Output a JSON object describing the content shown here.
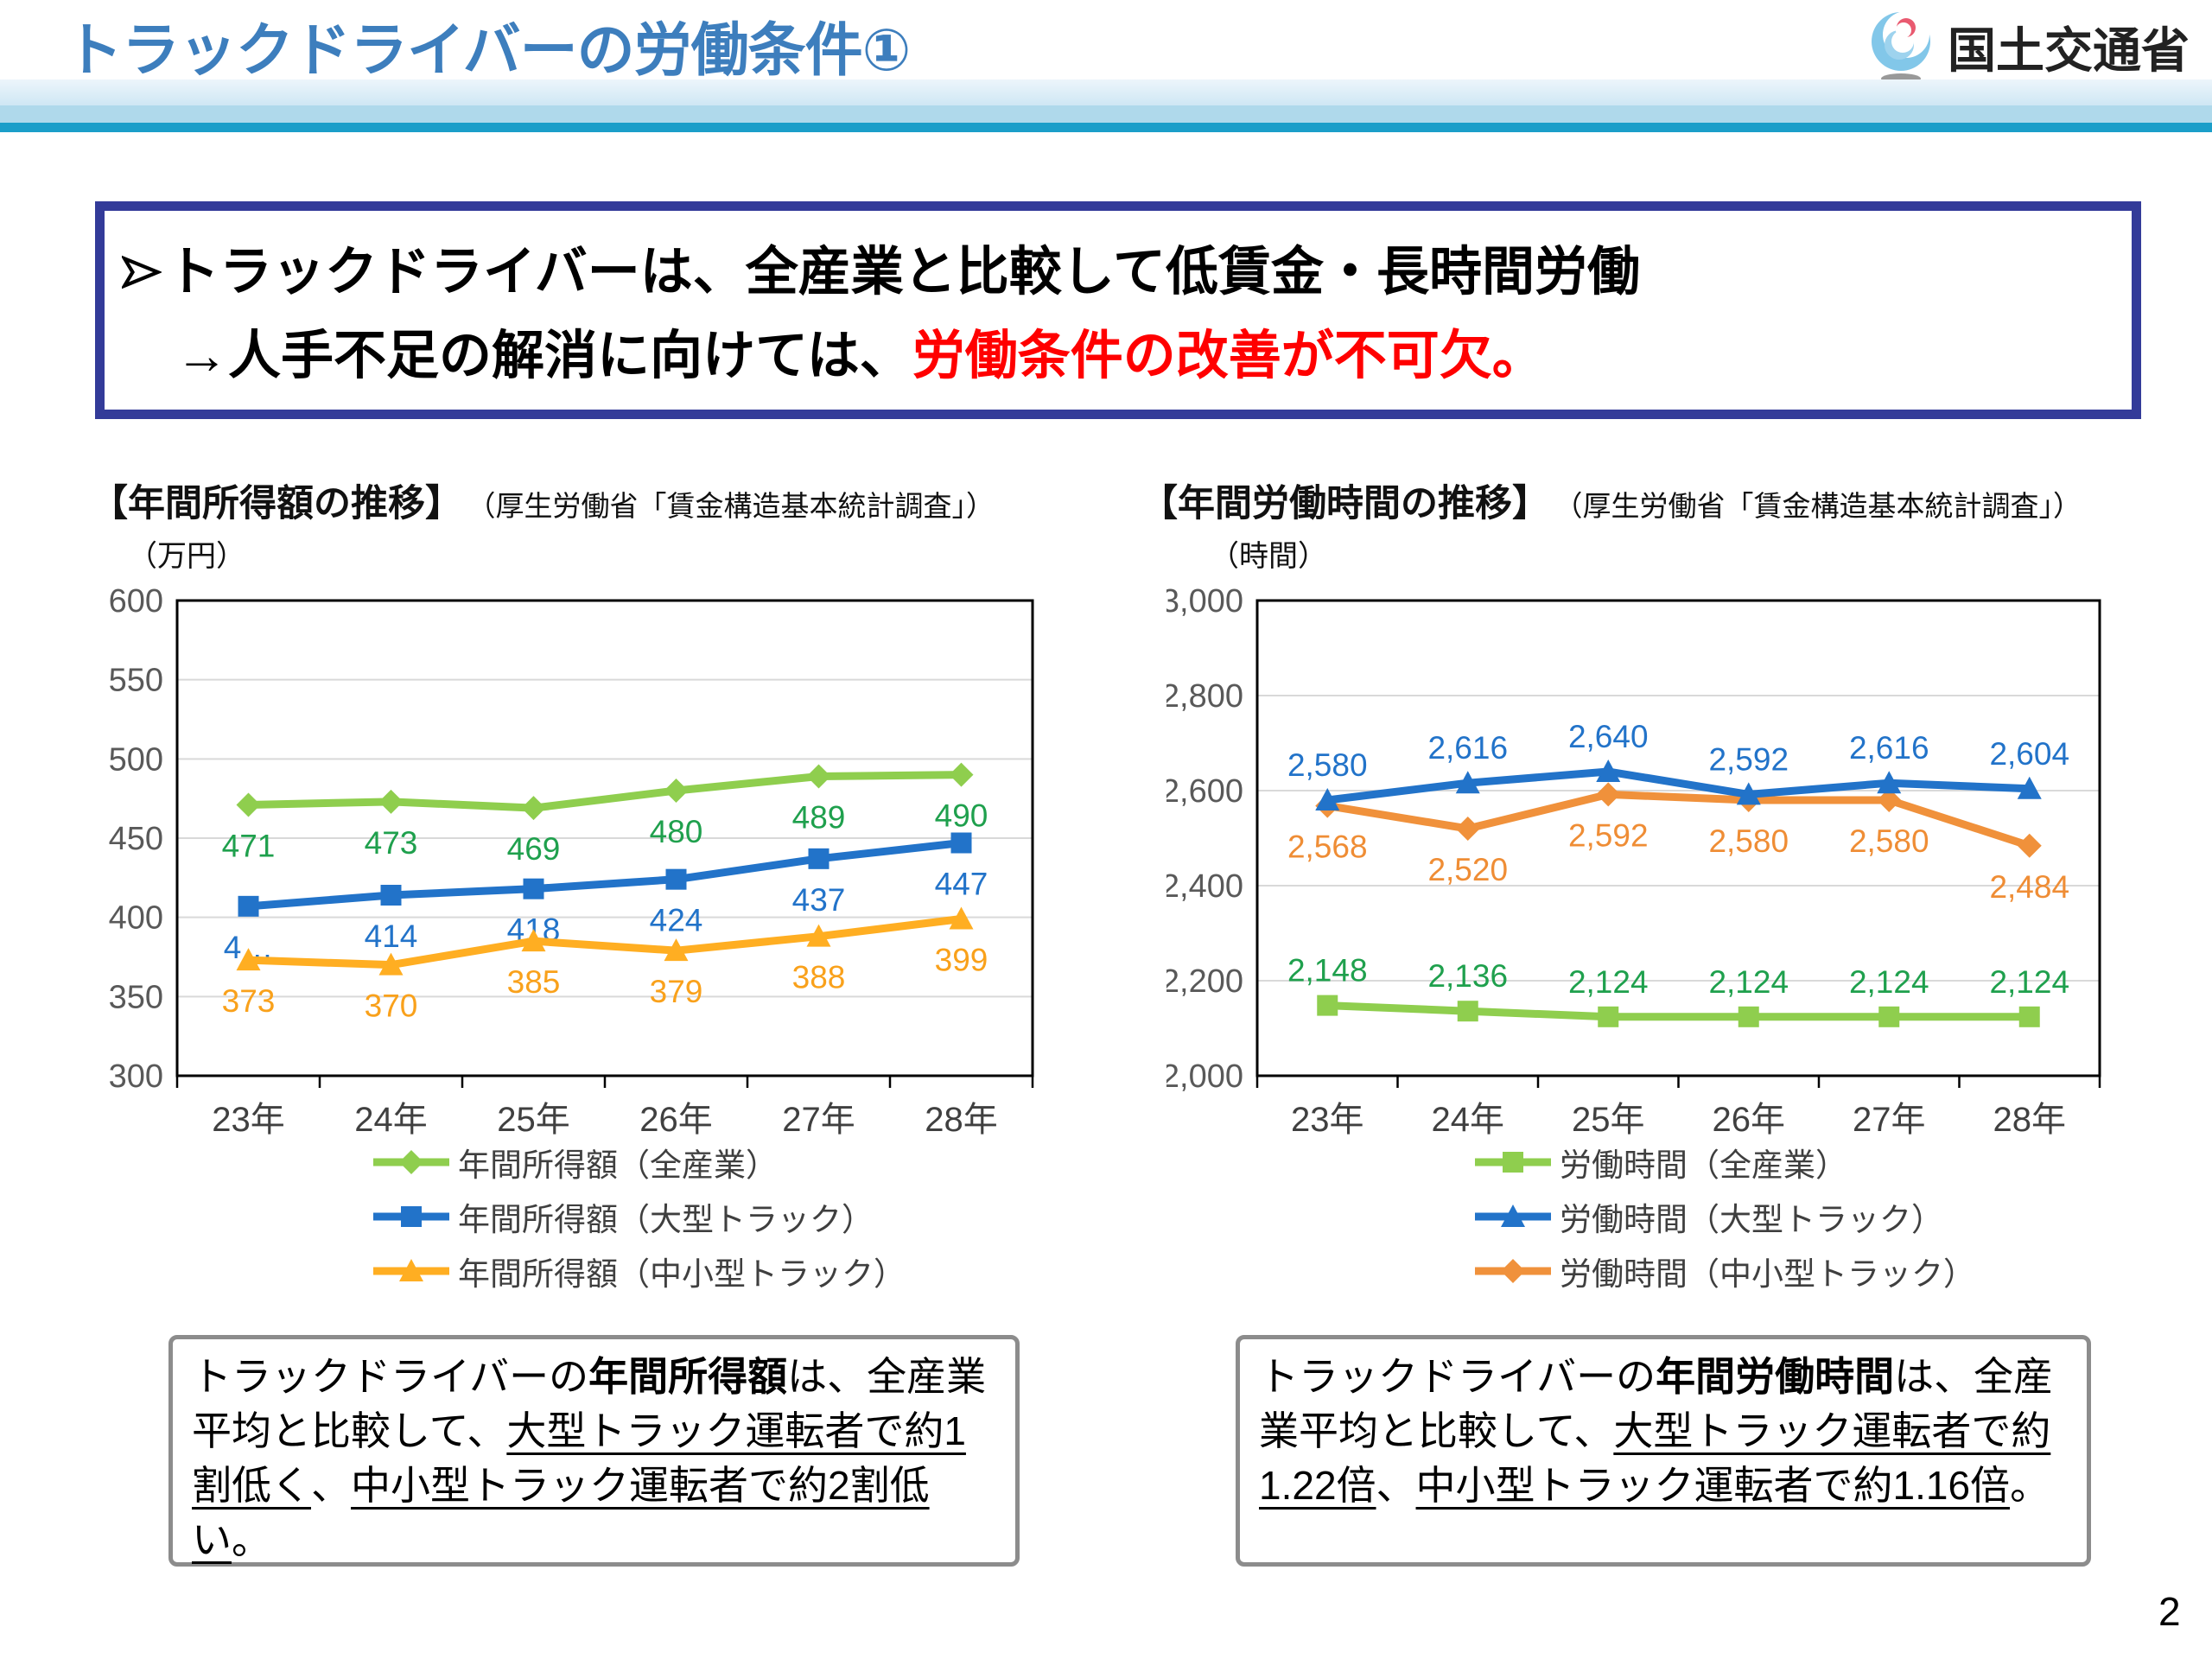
{
  "header": {
    "title": "トラックドライバーの労働条件①",
    "logo_text": "国土交通省",
    "accent_bar_color": "#1B9EC9",
    "title_color": "#3D7EBD"
  },
  "message_box": {
    "border_color": "#333B99",
    "line1": "トラックドライバーは、全産業と比較して低賃金・長時間労働",
    "line2_black": "→人手不足の解消に向けては、",
    "line2_red": "労働条件の改善が不可欠。",
    "red_color": "#FF0000"
  },
  "chart_data": [
    {
      "type": "line",
      "title": "【年間所得額の推移】",
      "source": "（厚生労働省「賃金構造基本統計調査」）",
      "unit": "（万円）",
      "categories": [
        "23年",
        "24年",
        "25年",
        "26年",
        "27年",
        "28年"
      ],
      "ylim": [
        300,
        600
      ],
      "ytick_step": 50,
      "ytick_labels": [
        "300",
        "350",
        "400",
        "450",
        "500",
        "550",
        "600"
      ],
      "grid": true,
      "legend_position": "bottom",
      "draw_order": [
        0,
        1,
        2
      ],
      "series": [
        {
          "name": "年間所得額（全産業）",
          "values": [
            471,
            473,
            469,
            480,
            489,
            490
          ],
          "labels": [
            "471",
            "473",
            "469",
            "480",
            "489",
            "490"
          ],
          "color": "#8FCE4E",
          "label_color": "#1FA04D",
          "marker": "diamond",
          "label_side": "below"
        },
        {
          "name": "年間所得額（大型トラック）",
          "values": [
            407,
            414,
            418,
            424,
            437,
            447
          ],
          "labels": [
            "4…",
            "414",
            "418",
            "424",
            "437",
            "447"
          ],
          "color": "#2273C9",
          "label_color": "#2273C9",
          "marker": "square",
          "label_side": "below"
        },
        {
          "name": "年間所得額（中小型トラック）",
          "values": [
            373,
            370,
            385,
            379,
            388,
            399
          ],
          "labels": [
            "373",
            "370",
            "385",
            "379",
            "388",
            "399"
          ],
          "color": "#FFAE22",
          "label_color": "#F9A11B",
          "marker": "triangle",
          "label_side": "below"
        }
      ]
    },
    {
      "type": "line",
      "title": "【年間労働時間の推移】",
      "source": "（厚生労働省「賃金構造基本統計調査」）",
      "unit": "（時間）",
      "categories": [
        "23年",
        "24年",
        "25年",
        "26年",
        "27年",
        "28年"
      ],
      "ylim": [
        2000,
        3000
      ],
      "ytick_step": 200,
      "ytick_labels": [
        "2,000",
        "2,200",
        "2,400",
        "2,600",
        "2,800",
        "3,000"
      ],
      "grid": true,
      "legend_position": "bottom",
      "draw_order": [
        0,
        2,
        1
      ],
      "series": [
        {
          "name": "労働時間（全産業）",
          "values": [
            2148,
            2136,
            2124,
            2124,
            2124,
            2124
          ],
          "labels": [
            "2,148",
            "2,136",
            "2,124",
            "2,124",
            "2,124",
            "2,124"
          ],
          "color": "#8FCE4E",
          "label_color": "#1FA04D",
          "marker": "square",
          "label_side": "above"
        },
        {
          "name": "労働時間（大型トラック）",
          "values": [
            2580,
            2616,
            2640,
            2592,
            2616,
            2604
          ],
          "labels": [
            "2,580",
            "2,616",
            "2,640",
            "2,592",
            "2,616",
            "2,604"
          ],
          "color": "#2273C9",
          "label_color": "#2273C9",
          "marker": "triangle",
          "label_side": "above"
        },
        {
          "name": "労働時間（中小型トラック）",
          "values": [
            2568,
            2520,
            2592,
            2580,
            2580,
            2484
          ],
          "labels": [
            "2,568",
            "2,520",
            "2,592",
            "2,580",
            "2,580",
            "2,484"
          ],
          "color": "#F0913B",
          "label_color": "#EF8D35",
          "marker": "diamond",
          "label_side": "below"
        }
      ]
    }
  ],
  "insight_boxes": [
    {
      "segments": [
        {
          "text": "トラックドライバーの"
        },
        {
          "text": "年間所得額",
          "bold": true
        },
        {
          "text": "は、全産業平均と比較して、"
        },
        {
          "text": "大型トラック運転者で約1割低く",
          "underline": true
        },
        {
          "text": "、"
        },
        {
          "text": "中小型トラック運転者で約2割低い",
          "underline": true
        },
        {
          "text": "。"
        }
      ]
    },
    {
      "segments": [
        {
          "text": "トラックドライバーの"
        },
        {
          "text": "年間労働時間",
          "bold": true
        },
        {
          "text": "は、全産業平均と比較して、"
        },
        {
          "text": "大型トラック運転者で約1.22倍",
          "underline": true
        },
        {
          "text": "、"
        },
        {
          "text": "中小型トラック運転者で約1.16倍",
          "underline": true
        },
        {
          "text": "。"
        }
      ]
    }
  ],
  "page_number": "2"
}
